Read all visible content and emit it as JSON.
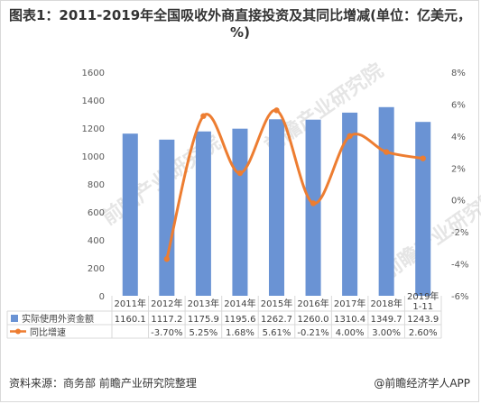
{
  "title": "图表1：2011-2019年全国吸收外商直接投资及其同比增减(单位：亿美元，%)",
  "source": "资料来源：商务部 前瞻产业研究院整理",
  "credit": "@前瞻经济学人APP",
  "watermark": "前瞻产业研究院",
  "colors": {
    "bar": "#6a93d4",
    "line": "#ed7d31",
    "grid": "#d9d9d9",
    "text": "#404040"
  },
  "chart_data": {
    "type": "bar",
    "categories": [
      "2011年",
      "2012年",
      "2013年",
      "2014年",
      "2015年",
      "2016年",
      "2017年",
      "2018年",
      "2019年\n1-11"
    ],
    "series": [
      {
        "name": "实际使用外资金额",
        "type": "bar",
        "axis": "left",
        "values": [
          1160.1,
          1117.2,
          1175.9,
          1195.6,
          1262.7,
          1260.0,
          1310.4,
          1349.7,
          1243.9
        ],
        "labels": [
          "1160.1",
          "1117.2",
          "1175.9",
          "1195.6",
          "1262.7",
          "1260.0",
          "1310.4",
          "1349.7",
          "1243.9"
        ]
      },
      {
        "name": "同比增速",
        "type": "line",
        "axis": "right",
        "smooth": true,
        "values": [
          null,
          -3.7,
          5.25,
          1.68,
          5.61,
          -0.21,
          4.0,
          3.0,
          2.6
        ],
        "labels": [
          "",
          "-3.70%",
          "5.25%",
          "1.68%",
          "5.61%",
          "-0.21%",
          "4.00%",
          "3.00%",
          "2.60%"
        ]
      }
    ],
    "y_left": {
      "min": 0,
      "max": 1600,
      "step": 200,
      "ticks": [
        "0",
        "200",
        "400",
        "600",
        "800",
        "1000",
        "1200",
        "1400",
        "1600"
      ]
    },
    "y_right": {
      "min": -6,
      "max": 8,
      "step": 2,
      "ticks": [
        "-6%",
        "-4%",
        "-2%",
        "0%",
        "2%",
        "4%",
        "6%",
        "8%"
      ]
    },
    "grid": true,
    "legend": "data-table"
  }
}
